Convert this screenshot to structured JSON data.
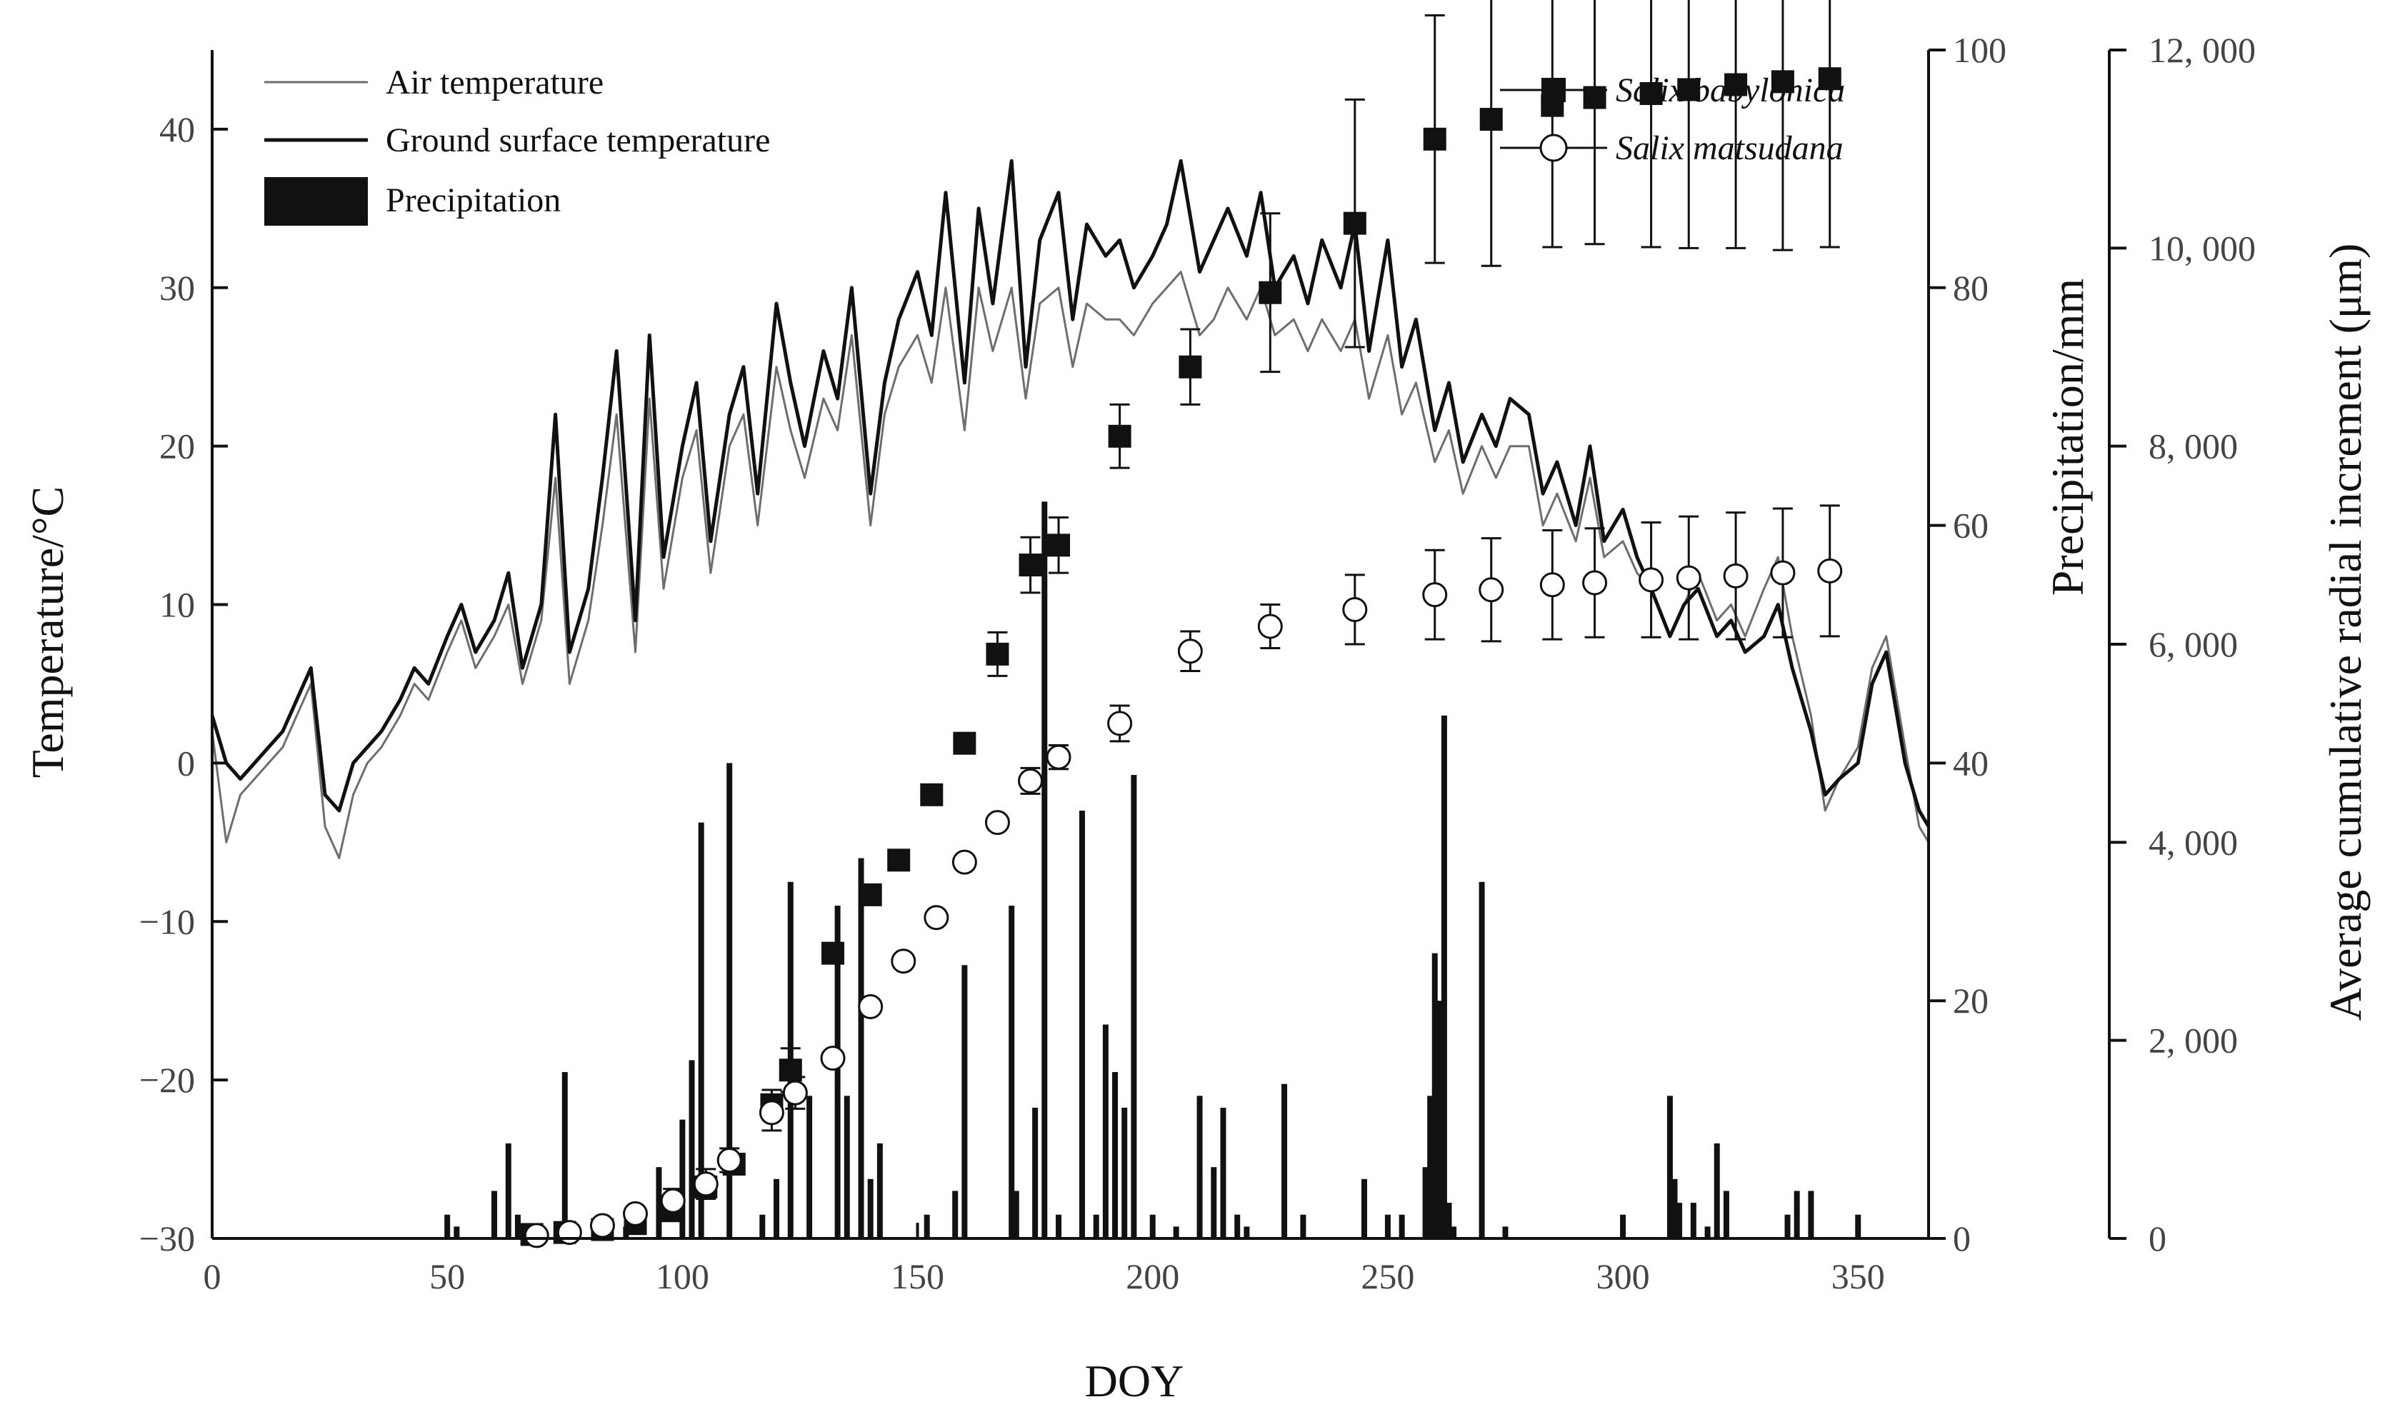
{
  "chart_data": {
    "type": "combo",
    "xlabel": "DOY",
    "xlim": [
      0,
      365
    ],
    "xticks": [
      0,
      50,
      100,
      150,
      200,
      250,
      300,
      350
    ],
    "xtick_labels": [
      "0",
      "50",
      "100",
      "150",
      "200",
      "250",
      "300",
      "350"
    ],
    "left_axis": {
      "label": "Temperature/°C",
      "range": [
        -30,
        45
      ],
      "ticks": [
        -30,
        -20,
        -10,
        0,
        10,
        20,
        30,
        40
      ],
      "tick_labels": [
        "−30",
        "−20",
        "−10",
        "0",
        "10",
        "20",
        "30",
        "40"
      ]
    },
    "precip_axis": {
      "label": "Precipitation/mm",
      "range": [
        0,
        100
      ],
      "ticks": [
        0,
        20,
        40,
        60,
        80,
        100
      ],
      "tick_labels": [
        "0",
        "20",
        "40",
        "60",
        "80",
        "100"
      ]
    },
    "increment_axis": {
      "label": "Average cumulative radial increment (μm)",
      "range": [
        0,
        12000
      ],
      "ticks": [
        0,
        2000,
        4000,
        6000,
        8000,
        10000,
        12000
      ],
      "tick_labels": [
        "0",
        "2, 000",
        "4, 000",
        "6, 000",
        "8, 000",
        "10, 000",
        "12, 000"
      ]
    },
    "legend_left": [
      "Air temperature",
      "Ground surface temperature",
      "Precipitation"
    ],
    "legend_right": [
      "Salix babylonica",
      "Salix matsudana"
    ],
    "ground_surface_temperature": {
      "name": "Ground surface temperature",
      "x": [
        0,
        3,
        6,
        9,
        12,
        15,
        18,
        21,
        24,
        27,
        30,
        33,
        36,
        40,
        43,
        46,
        50,
        53,
        56,
        60,
        63,
        66,
        70,
        73,
        76,
        80,
        83,
        86,
        90,
        93,
        96,
        100,
        103,
        106,
        110,
        113,
        116,
        120,
        123,
        126,
        130,
        133,
        136,
        140,
        143,
        146,
        150,
        153,
        156,
        160,
        163,
        166,
        170,
        173,
        176,
        180,
        183,
        186,
        190,
        193,
        196,
        200,
        203,
        206,
        210,
        213,
        216,
        220,
        223,
        226,
        230,
        233,
        236,
        240,
        243,
        246,
        250,
        253,
        256,
        260,
        263,
        266,
        270,
        273,
        276,
        280,
        283,
        286,
        290,
        293,
        296,
        300,
        303,
        306,
        310,
        313,
        316,
        320,
        323,
        326,
        330,
        333,
        336,
        340,
        343,
        346,
        350,
        353,
        356,
        360,
        363,
        365
      ],
      "values": [
        3,
        0,
        -1,
        0,
        1,
        2,
        4,
        6,
        -2,
        -3,
        0,
        1,
        2,
        4,
        6,
        5,
        8,
        10,
        7,
        9,
        12,
        6,
        10,
        22,
        7,
        11,
        18,
        26,
        9,
        27,
        13,
        20,
        24,
        14,
        22,
        25,
        17,
        29,
        24,
        20,
        26,
        23,
        30,
        17,
        24,
        28,
        31,
        27,
        36,
        24,
        35,
        29,
        38,
        25,
        33,
        36,
        28,
        34,
        32,
        33,
        30,
        32,
        34,
        38,
        31,
        33,
        35,
        32,
        36,
        30,
        32,
        29,
        33,
        30,
        34,
        26,
        33,
        25,
        28,
        21,
        24,
        19,
        22,
        20,
        23,
        22,
        17,
        19,
        15,
        20,
        14,
        16,
        13,
        11,
        8,
        10,
        11,
        8,
        9,
        7,
        8,
        10,
        6,
        2,
        -2,
        -1,
        0,
        5,
        7,
        0,
        -3,
        -4
      ]
    },
    "air_temperature": {
      "name": "Air temperature",
      "x": [
        0,
        3,
        6,
        9,
        12,
        15,
        18,
        21,
        24,
        27,
        30,
        33,
        36,
        40,
        43,
        46,
        50,
        53,
        56,
        60,
        63,
        66,
        70,
        73,
        76,
        80,
        83,
        86,
        90,
        93,
        96,
        100,
        103,
        106,
        110,
        113,
        116,
        120,
        123,
        126,
        130,
        133,
        136,
        140,
        143,
        146,
        150,
        153,
        156,
        160,
        163,
        166,
        170,
        173,
        176,
        180,
        183,
        186,
        190,
        193,
        196,
        200,
        203,
        206,
        210,
        213,
        216,
        220,
        223,
        226,
        230,
        233,
        236,
        240,
        243,
        246,
        250,
        253,
        256,
        260,
        263,
        266,
        270,
        273,
        276,
        280,
        283,
        286,
        290,
        293,
        296,
        300,
        303,
        306,
        310,
        313,
        316,
        320,
        323,
        326,
        330,
        333,
        336,
        340,
        343,
        346,
        350,
        353,
        356,
        360,
        363,
        365
      ],
      "values": [
        2,
        -5,
        -2,
        -1,
        0,
        1,
        3,
        5,
        -4,
        -6,
        -2,
        0,
        1,
        3,
        5,
        4,
        7,
        9,
        6,
        8,
        10,
        5,
        9,
        18,
        5,
        9,
        15,
        22,
        7,
        23,
        11,
        18,
        21,
        12,
        20,
        22,
        15,
        25,
        21,
        18,
        23,
        21,
        27,
        15,
        22,
        25,
        27,
        24,
        30,
        21,
        30,
        26,
        30,
        23,
        29,
        30,
        25,
        29,
        28,
        28,
        27,
        29,
        30,
        31,
        27,
        28,
        30,
        28,
        30,
        27,
        28,
        26,
        28,
        26,
        28,
        23,
        27,
        22,
        24,
        19,
        21,
        17,
        20,
        18,
        20,
        20,
        15,
        17,
        14,
        18,
        13,
        14,
        12,
        11,
        8,
        10,
        12,
        9,
        10,
        8,
        11,
        13,
        8,
        3,
        -3,
        -1,
        1,
        6,
        8,
        1,
        -4,
        -5
      ]
    },
    "precipitation": {
      "name": "Precipitation",
      "x": [
        50,
        52,
        60,
        63,
        65,
        67,
        75,
        83,
        88,
        95,
        100,
        102,
        104,
        110,
        117,
        120,
        123,
        127,
        133,
        135,
        138,
        140,
        142,
        152,
        158,
        160,
        170,
        171,
        175,
        177,
        180,
        185,
        188,
        190,
        192,
        194,
        196,
        200,
        205,
        210,
        213,
        215,
        218,
        220,
        228,
        232,
        245,
        250,
        253,
        258,
        259,
        260,
        261,
        262,
        263,
        264,
        270,
        275,
        300,
        310,
        311,
        312,
        315,
        318,
        320,
        322,
        335,
        337,
        340,
        350
      ],
      "values": [
        2,
        1,
        4,
        8,
        2,
        1,
        14,
        2,
        1,
        6,
        10,
        15,
        35,
        40,
        2,
        5,
        30,
        12,
        28,
        12,
        32,
        5,
        8,
        2,
        4,
        23,
        28,
        4,
        11,
        62,
        2,
        36,
        2,
        18,
        14,
        11,
        39,
        2,
        1,
        12,
        6,
        11,
        2,
        1,
        13,
        2,
        5,
        2,
        2,
        6,
        12,
        24,
        20,
        44,
        3,
        1,
        30,
        1,
        2,
        12,
        5,
        3,
        3,
        1,
        8,
        4,
        2,
        4,
        4,
        2
      ]
    },
    "series": [
      {
        "name": "Salix babylonica",
        "marker": "filled-square",
        "x": [
          68,
          75,
          83,
          90,
          98,
          105,
          111,
          119,
          123,
          132,
          140,
          146,
          153,
          160,
          167,
          174,
          180,
          193,
          208,
          225,
          243,
          260,
          272,
          285,
          294,
          306,
          314,
          324,
          334,
          344
        ],
        "values": [
          40,
          60,
          90,
          150,
          280,
          520,
          750,
          1350,
          1700,
          2880,
          3470,
          3820,
          4480,
          5000,
          5900,
          6800,
          7000,
          8100,
          8800,
          9550,
          10250,
          11100,
          11300,
          11440,
          11520,
          11560,
          11600,
          11650,
          11680,
          11710
        ],
        "errors": [
          0,
          0,
          0,
          0,
          0,
          0,
          0,
          150,
          220,
          0,
          0,
          0,
          0,
          0,
          220,
          280,
          280,
          320,
          380,
          800,
          1250,
          1250,
          1480,
          1430,
          1480,
          1550,
          1600,
          1650,
          1700,
          1700
        ]
      },
      {
        "name": "Salix matsudana",
        "marker": "open-circle",
        "x": [
          69,
          76,
          83,
          90,
          98,
          105,
          110,
          119,
          124,
          132,
          140,
          147,
          154,
          160,
          167,
          174,
          180,
          193,
          208,
          225,
          243,
          260,
          272,
          285,
          294,
          306,
          314,
          324,
          334,
          344
        ],
        "values": [
          30,
          60,
          130,
          250,
          380,
          550,
          790,
          1270,
          1470,
          1820,
          2340,
          2800,
          3240,
          3800,
          4200,
          4620,
          4860,
          5200,
          5930,
          6180,
          6350,
          6500,
          6550,
          6600,
          6620,
          6650,
          6670,
          6690,
          6720,
          6740
        ],
        "errors": [
          0,
          0,
          0,
          0,
          120,
          150,
          120,
          180,
          160,
          0,
          0,
          0,
          0,
          0,
          0,
          130,
          120,
          180,
          200,
          220,
          350,
          450,
          520,
          550,
          550,
          580,
          620,
          640,
          650,
          660
        ]
      }
    ]
  }
}
